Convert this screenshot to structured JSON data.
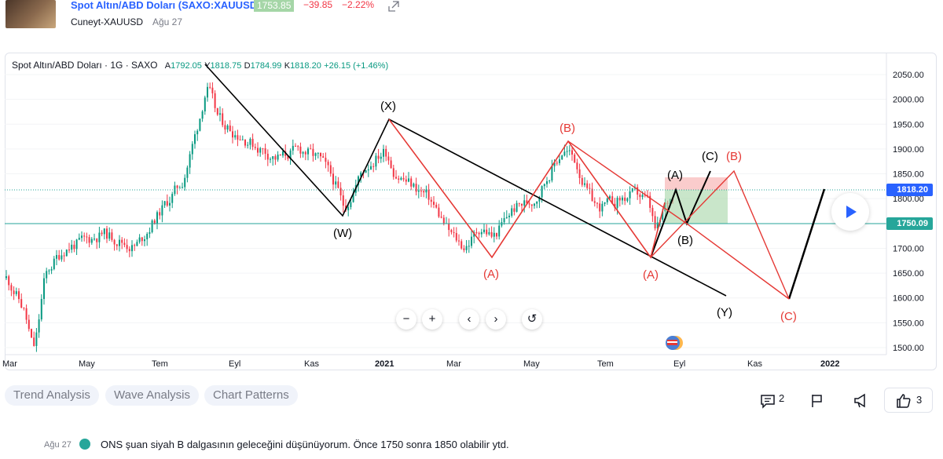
{
  "header": {
    "symbol_title": "Spot Altın/ABD Doları (SAXO:XAUUSD)",
    "price": "1753.85",
    "change": "−39.85",
    "change_pct": "−2.22%",
    "author": "Cuneyt-XAUUSD",
    "date": "Ağu 27"
  },
  "chart": {
    "legend": {
      "name": "Spot Altın/ABD Doları · 1G · SAXO",
      "open_label": "A",
      "open": "1792.05",
      "high_label": "Y",
      "high": "1818.75",
      "low_label": "D",
      "low": "1784.99",
      "close_label": "K",
      "close": "1818.20",
      "change": "+26.15 (+1.46%)"
    },
    "colors": {
      "up": "#089981",
      "down": "#f23645",
      "wave_red": "#e53935",
      "wave_black": "#000000",
      "current_tag": "#2962ff",
      "level_tag": "#26a69a"
    },
    "price_axis": [
      "2050.00",
      "2000.00",
      "1950.00",
      "1900.00",
      "1850.00",
      "1800.00",
      "1750.00",
      "1700.00",
      "1650.00",
      "1600.00",
      "1550.00",
      "1500.00"
    ],
    "time_axis": [
      "Mar",
      "May",
      "Tem",
      "Eyl",
      "Kas",
      "2021",
      "Mar",
      "May",
      "Tem",
      "Eyl",
      "Kas",
      "2022"
    ],
    "current_price_tag": "1818.20",
    "level_tag": "1750.09",
    "wave_labels": {
      "W": "(W)",
      "X": "(X)",
      "Y": "(Y)",
      "A1": "(A)",
      "B1": "(B)",
      "A2": "(A)",
      "A3": "(A)",
      "B2": "(B)",
      "C1": "(C)",
      "B3": "(B)",
      "C2": "(C)"
    },
    "nav_buttons": [
      "−",
      "+",
      "‹",
      "›",
      "↺"
    ]
  },
  "tags": [
    "Trend Analysis",
    "Wave Analysis",
    "Chart Patterns"
  ],
  "footer": {
    "comments_count": "2",
    "likes_count": "3"
  },
  "comment": {
    "date": "Ağu 27",
    "text": "ONS şuan siyah B dalgasının geleceğini düşünüyorum. Önce 1750 sonra 1850 olabilir ytd."
  }
}
